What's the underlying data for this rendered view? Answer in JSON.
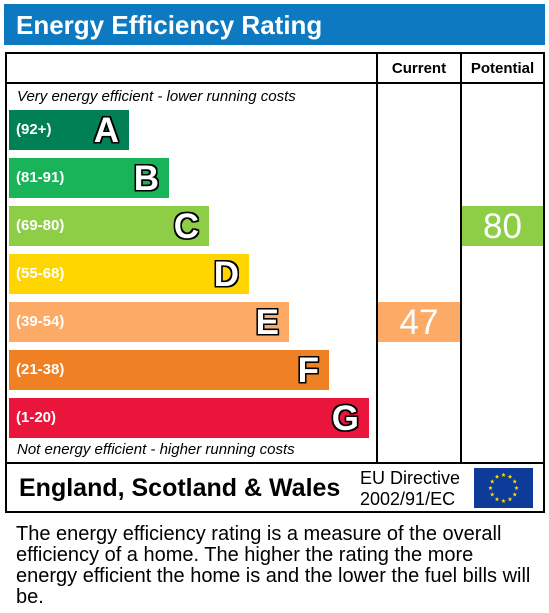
{
  "title": "Energy Efficiency Rating",
  "columns": {
    "current": "Current",
    "potential": "Potential"
  },
  "top_note": "Very energy efficient - lower running costs",
  "bottom_note": "Not energy efficient - higher running costs",
  "bands": [
    {
      "range": "(92+)",
      "letter": "A",
      "color": "#008054"
    },
    {
      "range": "(81-91)",
      "letter": "B",
      "color": "#19b459"
    },
    {
      "range": "(69-80)",
      "letter": "C",
      "color": "#8dce46"
    },
    {
      "range": "(55-68)",
      "letter": "D",
      "color": "#ffd500"
    },
    {
      "range": "(39-54)",
      "letter": "E",
      "color": "#fcaa65"
    },
    {
      "range": "(21-38)",
      "letter": "F",
      "color": "#ef8023"
    },
    {
      "range": "(1-20)",
      "letter": "G",
      "color": "#e9153b"
    }
  ],
  "ratings": {
    "current": {
      "value": "47",
      "band": "E",
      "color": "#fcaa65"
    },
    "potential": {
      "value": "80",
      "band": "C",
      "color": "#8dce46"
    }
  },
  "footer": {
    "country": "England, Scotland & Wales",
    "directive_line1": "EU Directive",
    "directive_line2": "2002/91/EC",
    "flag_icon": "eu-flag-icon"
  },
  "explanation": "The energy efficiency rating is a measure of the overall efficiency of a home. The higher the rating the more energy efficient the home is and the lower the fuel bills will be."
}
